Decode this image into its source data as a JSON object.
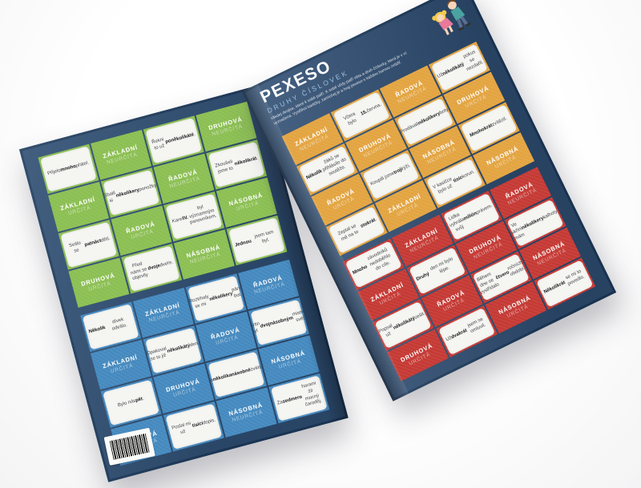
{
  "product": {
    "title": "PEXESO",
    "subtitle": "DRUHY ČÍSLOVEK",
    "instructions": "Hledej dvojice, které k sobě patří. K sobě vždy patří věta a druh číslovky, která je v ní vyznačena. Vystřihni kartičky, zamíchej je a hraj pexeso s každou barvou zvlášť."
  },
  "colors": {
    "cover_navy": "#2e4d72",
    "green": "#8bbf52",
    "blue": "#4489bf",
    "orange": "#e3a440",
    "red": "#c53934",
    "card_white": "#f5f5f2"
  },
  "grids": [
    {
      "id": "green",
      "color": "#8bbf52",
      "cards": [
        {
          "kind": "sentence",
          "text": "Přijelo mnoho přátel.",
          "bold": "mnoho"
        },
        {
          "kind": "label",
          "l1": "ZÁKLADNÍ",
          "l2": "NEURČITÁ"
        },
        {
          "kind": "sentence",
          "text": "Řekni to už poněkolikáté.",
          "bold": "poněkolikáté"
        },
        {
          "kind": "label",
          "l1": "DRUHOVÁ",
          "l2": "NEURČITÁ"
        },
        {
          "kind": "label",
          "l1": "ZÁKLADNÍ",
          "l2": "URČITÁ"
        },
        {
          "kind": "sentence",
          "text": "Sbalil si několikery ponožky.",
          "bold": "několikery"
        },
        {
          "kind": "label",
          "l1": "ŘADOVÁ",
          "l2": "NEURČITÁ"
        },
        {
          "kind": "sentence",
          "text": "Zkoušeli jsme to několikrát.",
          "bold": "několikrát"
        },
        {
          "kind": "sentence",
          "text": "Sešlo se patnáct dětí.",
          "bold": "patnáct"
        },
        {
          "kind": "label",
          "l1": "ŘADOVÁ",
          "l2": "URČITÁ"
        },
        {
          "kind": "sentence",
          "text": "Karel IV. byl významným panovníkem.",
          "bold": "IV."
        },
        {
          "kind": "label",
          "l1": "NÁSOBNÁ",
          "l2": "URČITÁ"
        },
        {
          "kind": "label",
          "l1": "DRUHOVÁ",
          "l2": "URČITÁ"
        },
        {
          "kind": "sentence",
          "text": "Před námi se objevily dvoje dveře.",
          "bold": "dvoje"
        },
        {
          "kind": "label",
          "l1": "NÁSOBNÁ",
          "l2": "NEURČITÁ"
        },
        {
          "kind": "sentence",
          "text": "Jednou jsem tam byl.",
          "bold": "Jednou"
        }
      ]
    },
    {
      "id": "blue",
      "color": "#4489bf",
      "cards": [
        {
          "kind": "sentence",
          "text": "Několik dívek odešlo.",
          "bold": "Několik"
        },
        {
          "kind": "label",
          "l1": "ZÁKLADNÍ",
          "l2": "NEURČITÁ"
        },
        {
          "kind": "sentence",
          "text": "Roztrhaly se mi několikery páry bot.",
          "bold": "několikery"
        },
        {
          "kind": "label",
          "l1": "ŘADOVÁ",
          "l2": "NEURČITÁ"
        },
        {
          "kind": "label",
          "l1": "ZÁKLADNÍ",
          "l2": "URČITÁ"
        },
        {
          "kind": "sentence",
          "text": "Opakoval se to již několikátý den.",
          "bold": "několikátý"
        },
        {
          "kind": "label",
          "l1": "ŘADOVÁ",
          "l2": "URČITÁ"
        },
        {
          "kind": "sentence",
          "text": "Martin byl dvojnásobným mistrem světa.",
          "bold": "dvojnásobným"
        },
        {
          "kind": "sentence",
          "text": "Bylo nás pět.",
          "bold": "pět"
        },
        {
          "kind": "label",
          "l1": "DRUHOVÁ",
          "l2": "URČITÁ"
        },
        {
          "kind": "sentence",
          "text": "Mělo několikanásobné zvětšení.",
          "bold": "několikanásobné"
        },
        {
          "kind": "label",
          "l1": "NÁSOBNÁ",
          "l2": "URČITÁ"
        },
        {
          "kind": "label",
          "l1": "DRUHOVÁ",
          "l2": "NEURČITÁ"
        },
        {
          "kind": "sentence",
          "text": "Poslal mi už tisící dopis.",
          "bold": "tisící"
        },
        {
          "kind": "label",
          "l1": "NÁSOBNÁ",
          "l2": "NEURČITÁ"
        },
        {
          "kind": "sentence",
          "text": "Za sedmero horami žil mocný čaroděj.",
          "bold": "sedmero"
        }
      ]
    },
    {
      "id": "orange",
      "color": "#e3a440",
      "cards": [
        {
          "kind": "label",
          "l1": "ZÁKLADNÍ",
          "l2": "NEURČITÁ"
        },
        {
          "kind": "sentence",
          "text": "Včera bylo 15. června.",
          "bold": "15."
        },
        {
          "kind": "label",
          "l1": "ŘADOVÁ",
          "l2": "NEURČITÁ"
        },
        {
          "kind": "sentence",
          "text": "Už několikátý pokus se nezdařil.",
          "bold": "několikátý"
        },
        {
          "kind": "sentence",
          "text": "Několik žáků se přihlásilo do soutěže.",
          "bold": "Několik"
        },
        {
          "kind": "label",
          "l1": "DRUHOVÁ",
          "l2": "NEURČITÁ"
        },
        {
          "kind": "sentence",
          "text": "Prodávali několikery boty.",
          "bold": "několikery"
        },
        {
          "kind": "label",
          "l1": "DRUHOVÁ",
          "l2": "URČITÁ"
        },
        {
          "kind": "label",
          "l1": "ŘADOVÁ",
          "l2": "URČITÁ"
        },
        {
          "kind": "sentence",
          "text": "Koupili jsme trojí rýži.",
          "bold": "trojí"
        },
        {
          "kind": "label",
          "l1": "NÁSOBNÁ",
          "l2": "NEURČITÁ"
        },
        {
          "kind": "sentence",
          "text": "Mnohokrát zvítězil.",
          "bold": "Mnohokrát"
        },
        {
          "kind": "sentence",
          "text": "Zeptal se mě na to stokrát.",
          "bold": "stokrát"
        },
        {
          "kind": "label",
          "l1": "ZÁKLADNÍ",
          "l2": "URČITÁ"
        },
        {
          "kind": "sentence",
          "text": "V kasičce bylo už tisíc korun.",
          "bold": "tisíc"
        },
        {
          "kind": "label",
          "l1": "NÁSOBNÁ",
          "l2": "URČITÁ"
        }
      ]
    },
    {
      "id": "red",
      "color": "#c53934",
      "cards": [
        {
          "kind": "sentence",
          "text": "Mnoho závodníků nedoběhlo do cíle.",
          "bold": "Mnoho"
        },
        {
          "kind": "label",
          "l1": "ZÁKLADNÍ",
          "l2": "NEURČITÁ"
        },
        {
          "kind": "sentence",
          "text": "Lidka vyhrála svůj milión právem.",
          "bold": "milión"
        },
        {
          "kind": "label",
          "l1": "ŘADOVÁ",
          "l2": "NEURČITÁ"
        },
        {
          "kind": "label",
          "l1": "ZÁKLADNÍ",
          "l2": "URČITÁ"
        },
        {
          "kind": "sentence",
          "text": "Druhý den mi bylo lépe.",
          "bold": "Druhý"
        },
        {
          "kind": "label",
          "l1": "DRUHOVÁ",
          "l2": "NEURČITÁ"
        },
        {
          "kind": "sentence",
          "text": "Ve skříni mám několikery kalhoty.",
          "bold": "několikery"
        },
        {
          "kind": "sentence",
          "text": "Popsal už několikátý sešit.",
          "bold": "několikátý"
        },
        {
          "kind": "label",
          "l1": "ŘADOVÁ",
          "l2": "URČITÁ"
        },
        {
          "kind": "sentence",
          "text": "Během dne se vystřídalo čtvero ročních období.",
          "bold": "čtvero"
        },
        {
          "kind": "label",
          "l1": "NÁSOBNÁ",
          "l2": "NEURČITÁ"
        },
        {
          "kind": "label",
          "l1": "DRUHOVÁ",
          "l2": "URČITÁ"
        },
        {
          "kind": "sentence",
          "text": "Už dvakrát jsem se omluvil.",
          "bold": "dvakrát"
        },
        {
          "kind": "label",
          "l1": "NÁSOBNÁ",
          "l2": "URČITÁ"
        },
        {
          "kind": "sentence",
          "text": "Několikrát se mi to povedlo.",
          "bold": "Několikrát"
        }
      ]
    }
  ]
}
